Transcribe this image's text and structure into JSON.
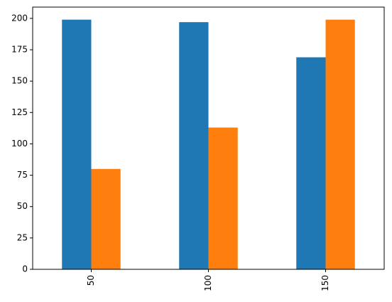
{
  "chart_data": {
    "type": "bar",
    "categories": [
      "50",
      "100",
      "150"
    ],
    "series": [
      {
        "color": "#1f77b4",
        "values": [
          199,
          197,
          169
        ]
      },
      {
        "color": "#ff7f0e",
        "values": [
          80,
          113,
          199
        ]
      }
    ],
    "ylim": [
      0,
      209
    ],
    "yticks": [
      0,
      25,
      50,
      75,
      100,
      125,
      150,
      175,
      200
    ]
  }
}
